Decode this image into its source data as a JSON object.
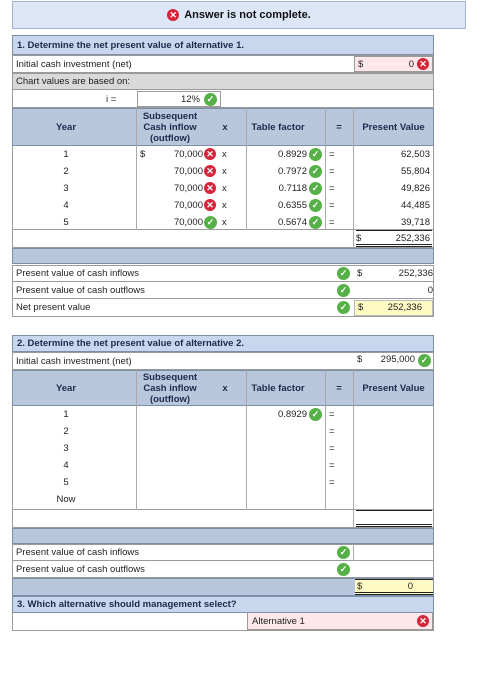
{
  "banner": {
    "text": "Answer is not complete."
  },
  "part1": {
    "title": "1. Determine the net present value of alternative 1.",
    "initial_label": "Initial cash investment (net)",
    "initial_dollar": "$",
    "initial_value": "0",
    "chart_values_label": "Chart values are based on:",
    "i_label": "i =",
    "i_value": "12%",
    "headers": {
      "year": "Year",
      "subsequent": "Subsequent Cash inflow (outflow)",
      "x": "x",
      "table_factor": "Table factor",
      "eq": "=",
      "present_value": "Present Value"
    },
    "rows": [
      {
        "year": "1",
        "dollar": "$",
        "inflow": "70,000",
        "inflow_status": "wrong",
        "x": "x",
        "factor": "0.8929",
        "eq": "=",
        "pv": "62,503"
      },
      {
        "year": "2",
        "dollar": "",
        "inflow": "70,000",
        "inflow_status": "wrong",
        "x": "x",
        "factor": "0.7972",
        "eq": "=",
        "pv": "55,804"
      },
      {
        "year": "3",
        "dollar": "",
        "inflow": "70,000",
        "inflow_status": "wrong",
        "x": "x",
        "factor": "0.7118",
        "eq": "=",
        "pv": "49,826"
      },
      {
        "year": "4",
        "dollar": "",
        "inflow": "70,000",
        "inflow_status": "wrong",
        "x": "x",
        "factor": "0.6355",
        "eq": "=",
        "pv": "44,485"
      },
      {
        "year": "5",
        "dollar": "",
        "inflow": "70,000",
        "inflow_status": "right",
        "x": "x",
        "factor": "0.5674",
        "eq": "=",
        "pv": "39,718"
      }
    ],
    "total_dollar": "$",
    "total_value": "252,336",
    "summary": [
      {
        "label": "Present value of cash inflows",
        "dollar": "$",
        "value": "252,336"
      },
      {
        "label": "Present value of cash outflows",
        "dollar": "",
        "value": "0"
      },
      {
        "label": "Net present value",
        "dollar": "$",
        "value": "252,336"
      }
    ]
  },
  "part2": {
    "title": "2. Determine the net present value of alternative 2.",
    "initial_label": "Initial cash investment (net)",
    "initial_dollar": "$",
    "initial_value": "295,000",
    "headers": {
      "year": "Year",
      "subsequent": "Subsequent Cash inflow (outflow)",
      "x": "x",
      "table_factor": "Table factor",
      "eq": "=",
      "present_value": "Present Value"
    },
    "rows": [
      {
        "year": "1",
        "factor": "0.8929",
        "eq": "="
      },
      {
        "year": "2",
        "factor": "",
        "eq": "="
      },
      {
        "year": "3",
        "factor": "",
        "eq": "="
      },
      {
        "year": "4",
        "factor": "",
        "eq": "="
      },
      {
        "year": "5",
        "factor": "",
        "eq": "="
      },
      {
        "year": "Now",
        "factor": "",
        "eq": ""
      }
    ],
    "summary": [
      {
        "label": "Present value of cash inflows",
        "dollar": "",
        "value": ""
      },
      {
        "label": "Present value of cash outflows",
        "dollar": "",
        "value": ""
      }
    ],
    "npv_dollar": "$",
    "npv_value": "0"
  },
  "part3": {
    "title": "3. Which alternative should management select?",
    "answer": "Alternative 1"
  },
  "icons": {
    "wrong": "x-circle-icon",
    "right": "check-circle-icon"
  },
  "colors": {
    "wrong": "#d6243a",
    "right": "#55b046",
    "header": "#b9c7dd",
    "section": "#c9d7ee"
  }
}
